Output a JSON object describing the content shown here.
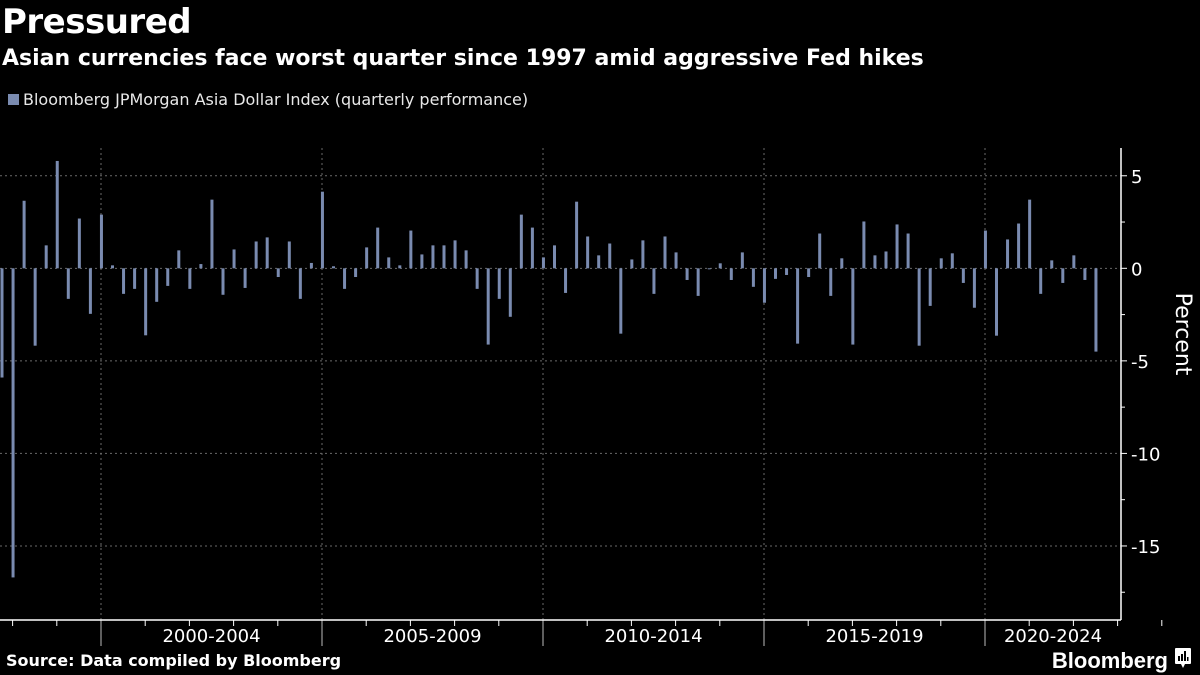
{
  "header": {
    "title": "Pressured",
    "subtitle": "Asian currencies face worst quarter since 1997 amid aggressive Fed hikes"
  },
  "legend": {
    "label": "Bloomberg JPMorgan Asia Dollar Index (quarterly performance)"
  },
  "footer": {
    "source": "Source: Data compiled by Bloomberg",
    "brand": "Bloomberg",
    "brand_icon": "bloomberg-chart-icon"
  },
  "colors": {
    "bar": "#7a8bb0",
    "background": "#000000",
    "grid": "#6a6a6a",
    "axis": "#ffffff"
  },
  "chart_data": {
    "type": "bar",
    "title": "Pressured",
    "subtitle": "Asian currencies face worst quarter since 1997 amid aggressive Fed hikes",
    "xlabel": "",
    "ylabel": "Percent",
    "ylim": [
      -19,
      6.5
    ],
    "yticks": [
      5,
      0,
      -5,
      -10,
      -15
    ],
    "grid": true,
    "legend_position": "top-left",
    "x_start": "1997 Q3",
    "x_end": "2022 Q2",
    "x_period_labels": [
      "2000-2004",
      "2005-2009",
      "2010-2014",
      "2015-2019",
      "2020-2024"
    ],
    "x_range_years": [
      1997.5,
      2025.0
    ],
    "series": [
      {
        "name": "Bloomberg JPMorgan Asia Dollar Index (quarterly performance)",
        "values": [
          -5.9,
          -16.7,
          3.65,
          -4.18,
          1.24,
          5.8,
          -1.65,
          2.69,
          -2.46,
          2.9,
          0.16,
          -1.38,
          -1.11,
          -3.62,
          -1.81,
          -0.95,
          0.97,
          -1.11,
          0.23,
          3.71,
          -1.43,
          1.02,
          -1.06,
          1.45,
          1.67,
          -0.47,
          1.45,
          -1.65,
          0.29,
          4.14,
          0.11,
          -1.11,
          -0.47,
          1.13,
          2.2,
          0.59,
          0.16,
          2.04,
          0.75,
          1.24,
          1.24,
          1.51,
          0.97,
          -1.11,
          -4.12,
          -1.65,
          -2.62,
          2.9,
          2.2,
          0.59,
          1.24,
          -1.33,
          3.6,
          1.72,
          0.7,
          1.34,
          -3.53,
          0.48,
          1.51,
          -1.38,
          1.72,
          0.86,
          -0.63,
          -1.49,
          -0.02,
          0.27,
          -0.63,
          0.86,
          -1.0,
          -1.86,
          -0.57,
          -0.36,
          -4.07,
          -0.47,
          1.88,
          -1.49,
          0.54,
          -4.12,
          2.53,
          0.7,
          0.91,
          2.37,
          1.88,
          -4.18,
          -2.03,
          0.54,
          0.81,
          -0.79,
          -2.13,
          2.04,
          -3.64,
          1.56,
          2.42,
          3.71,
          -1.38,
          0.43,
          -0.79,
          0.7,
          -0.63,
          -4.5
        ]
      }
    ]
  }
}
